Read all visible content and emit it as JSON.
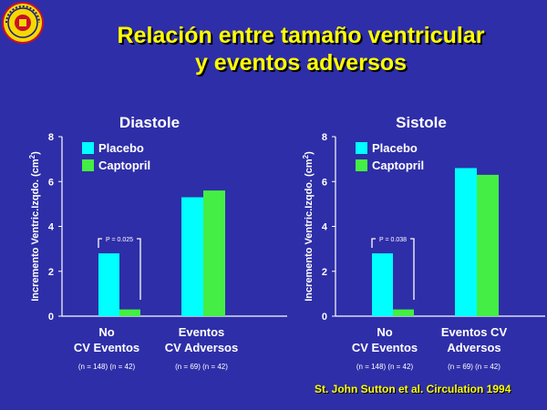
{
  "title": {
    "line1": "Relación entre tamaño ventricular",
    "line2": "y eventos adversos"
  },
  "citation": "St. John Sutton et al. Circulation 1994",
  "colors": {
    "background": "#2e2ea8",
    "title": "#ffff00",
    "placebo": "#00ffff",
    "captopril": "#44ee44"
  },
  "chart_data": [
    {
      "type": "bar",
      "title": "Diastole",
      "ylabel": "Incremento Ventric.Izqdo. (cm",
      "ylabel_sup": "2",
      "ylabel_end": ")",
      "ylim": [
        0,
        8
      ],
      "yticks": [
        "0",
        "2",
        "4",
        "6",
        "8"
      ],
      "legend": [
        "Placebo",
        "Captopril"
      ],
      "legend_position": "top-left",
      "categories": [
        {
          "line1": "No",
          "line2": "CV Eventos",
          "n": "(n = 148) (n = 42)"
        },
        {
          "line1": "Eventos",
          "line2": "CV Adversos",
          "n": "(n = 69) (n = 42)"
        }
      ],
      "series": [
        {
          "name": "Placebo",
          "values": [
            2.8,
            5.3
          ]
        },
        {
          "name": "Captopril",
          "values": [
            0.3,
            5.6
          ]
        }
      ],
      "annotation": "P = 0.025"
    },
    {
      "type": "bar",
      "title": "Sistole",
      "ylabel": "Incremento Ventric.Izqdo. (cm",
      "ylabel_sup": "2",
      "ylabel_end": ")",
      "ylim": [
        0,
        8
      ],
      "yticks": [
        "0",
        "2",
        "4",
        "6",
        "8"
      ],
      "legend": [
        "Placebo",
        "Captopril"
      ],
      "legend_position": "top-left",
      "categories": [
        {
          "line1": "No",
          "line2": "CV Eventos",
          "n": "(n = 148) (n = 42)"
        },
        {
          "line1": "Eventos CV",
          "line2": "Adversos",
          "n": "(n = 69) (n = 42)"
        }
      ],
      "series": [
        {
          "name": "Placebo",
          "values": [
            2.8,
            6.6
          ]
        },
        {
          "name": "Captopril",
          "values": [
            0.3,
            6.3
          ]
        }
      ],
      "annotation": "P = 0.038"
    }
  ]
}
